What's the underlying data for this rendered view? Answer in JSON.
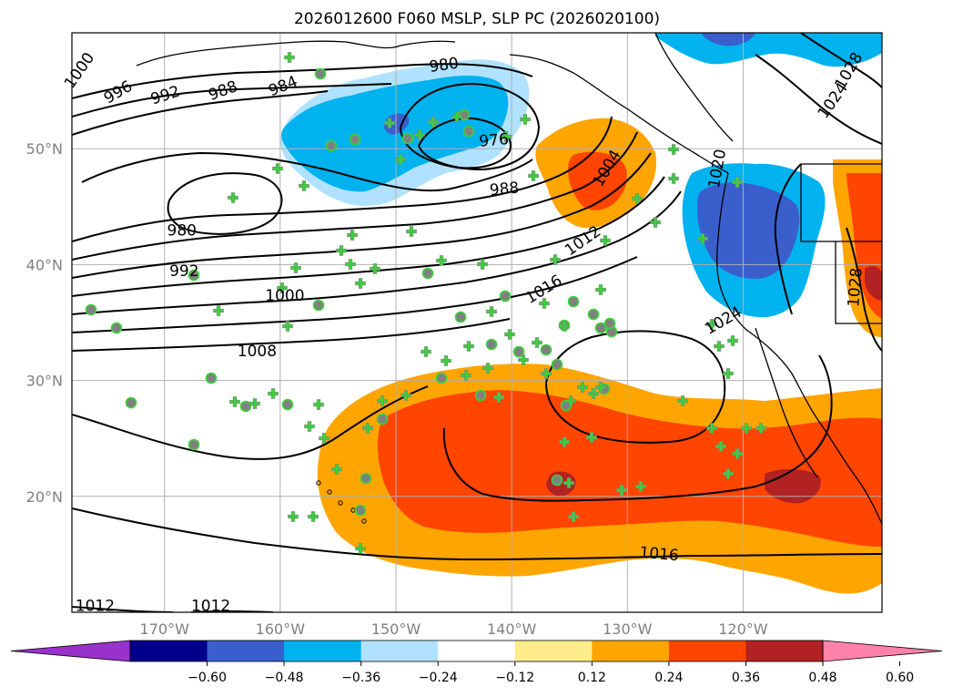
{
  "title": "2026012600 F060 MSLP, SLP PC (2026020100)",
  "map": {
    "lon_range": [
      -178,
      -108
    ],
    "lat_range": [
      10,
      60
    ],
    "lon_ticks": [
      {
        "value": -170,
        "label": "170°W"
      },
      {
        "value": -160,
        "label": "160°W"
      },
      {
        "value": -150,
        "label": "150°W"
      },
      {
        "value": -140,
        "label": "140°W"
      },
      {
        "value": -130,
        "label": "130°W"
      },
      {
        "value": -120,
        "label": "120°W"
      }
    ],
    "lat_ticks": [
      {
        "value": 20,
        "label": "20°N"
      },
      {
        "value": 30,
        "label": "30°N"
      },
      {
        "value": 40,
        "label": "40°N"
      },
      {
        "value": 50,
        "label": "50°N"
      }
    ],
    "grid": true
  },
  "colorbar": {
    "ticks": [
      "−0.60",
      "−0.48",
      "−0.36",
      "−0.24",
      "−0.12",
      "0.12",
      "0.24",
      "0.36",
      "0.48",
      "0.60"
    ],
    "colors": [
      "#9932cc",
      "#00008b",
      "#3a5fcd",
      "#00b2ee",
      "#b0e2ff",
      "#ffffff",
      "#ffec8b",
      "#ffa500",
      "#ff4500",
      "#b22222",
      "#ff82ab"
    ],
    "extend": "both"
  },
  "isobar_labels": [
    {
      "text": "1000",
      "lon": -177,
      "lat": 56.5,
      "rot": -55
    },
    {
      "text": "996",
      "lon": -173.8,
      "lat": 54.5,
      "rot": -30
    },
    {
      "text": "992",
      "lon": -169.8,
      "lat": 54.2,
      "rot": -18
    },
    {
      "text": "988",
      "lon": -164.8,
      "lat": 54.6,
      "rot": -20
    },
    {
      "text": "984",
      "lon": -159.6,
      "lat": 55.0,
      "rot": -22
    },
    {
      "text": "980",
      "lon": -145.8,
      "lat": 56.8,
      "rot": -8
    },
    {
      "text": "976",
      "lon": -141.5,
      "lat": 50.3,
      "rot": -5
    },
    {
      "text": "988",
      "lon": -140.6,
      "lat": 46.1,
      "rot": -5
    },
    {
      "text": "1004",
      "lon": -131.4,
      "lat": 48.1,
      "rot": -60
    },
    {
      "text": "1012",
      "lon": -133.6,
      "lat": 41.7,
      "rot": -35
    },
    {
      "text": "1016",
      "lon": -137.0,
      "lat": 37.5,
      "rot": -32
    },
    {
      "text": "980",
      "lon": -168.5,
      "lat": 42.5,
      "rot": 0
    },
    {
      "text": "992",
      "lon": -168.3,
      "lat": 39.0,
      "rot": 0
    },
    {
      "text": "1000",
      "lon": -159.6,
      "lat": 36.9,
      "rot": 0
    },
    {
      "text": "1008",
      "lon": -162.0,
      "lat": 32.1,
      "rot": 0
    },
    {
      "text": "1016",
      "lon": -127.3,
      "lat": 14.6,
      "rot": 5
    },
    {
      "text": "1012",
      "lon": -176.0,
      "lat": 10.1,
      "rot": 0
    },
    {
      "text": "1012",
      "lon": -166.0,
      "lat": 10.1,
      "rot": 0
    },
    {
      "text": "1028",
      "lon": -110.5,
      "lat": 56.5,
      "rot": -60
    },
    {
      "text": "1024",
      "lon": -111.9,
      "lat": 53.9,
      "rot": -55
    },
    {
      "text": "1020",
      "lon": -121.8,
      "lat": 48.2,
      "rot": -80
    },
    {
      "text": "1024",
      "lon": -121.5,
      "lat": 34.8,
      "rot": -30
    },
    {
      "text": "1028",
      "lon": -109.9,
      "lat": 38.0,
      "rot": -85
    }
  ]
}
